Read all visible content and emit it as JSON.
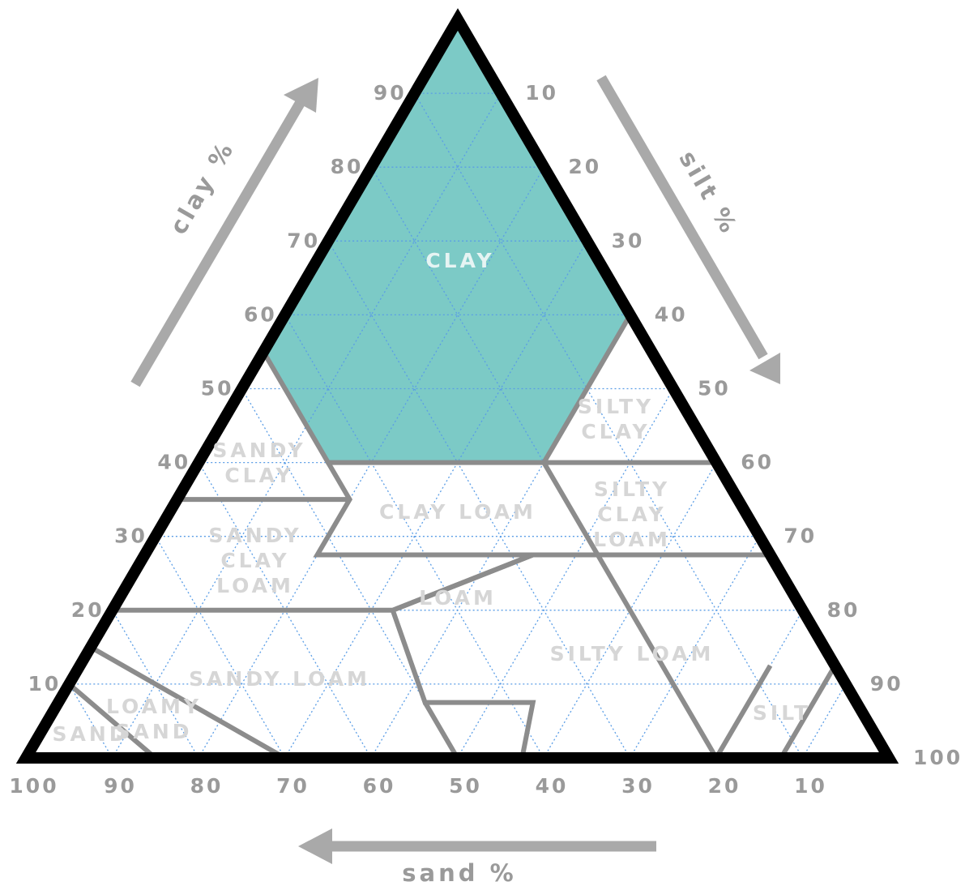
{
  "colors": {
    "clay_fill": "#7ccac6",
    "outline": "#000000",
    "boundary": "#8c8c8c",
    "grid": "#5a9de6",
    "tick_text": "#9a9a9a",
    "class_text": "#d6d6d6",
    "clay_text": "#e6f4f3",
    "arrow": "#a9a9a9"
  },
  "axes": {
    "clay": {
      "title": "clay %",
      "ticks": [
        "10",
        "20",
        "30",
        "40",
        "50",
        "60",
        "70",
        "80",
        "90"
      ]
    },
    "silt": {
      "title": "silt %",
      "ticks": [
        "10",
        "20",
        "30",
        "40",
        "50",
        "60",
        "70",
        "80",
        "90",
        "100"
      ]
    },
    "sand": {
      "title": "sand %",
      "ticks": [
        "100",
        "90",
        "80",
        "70",
        "60",
        "50",
        "40",
        "30",
        "20",
        "10"
      ]
    }
  },
  "classes": {
    "clay": [
      "CLAY"
    ],
    "silty_clay": [
      "SILTY",
      "CLAY"
    ],
    "sandy_clay": [
      "SANDY",
      "CLAY"
    ],
    "clay_loam": [
      "CLAY LOAM"
    ],
    "silty_clay_loam": [
      "SILTY",
      "CLAY",
      "LOAM"
    ],
    "sandy_clay_loam": [
      "SANDY",
      "CLAY",
      "LOAM"
    ],
    "loam": [
      "LOAM"
    ],
    "silty_loam": [
      "SILTY LOAM"
    ],
    "sandy_loam": [
      "SANDY LOAM"
    ],
    "loamy_sand": [
      "LOAMY",
      "SAND"
    ],
    "sand": [
      "SAND"
    ],
    "silt": [
      "SILT"
    ]
  },
  "highlighted_class": "clay"
}
